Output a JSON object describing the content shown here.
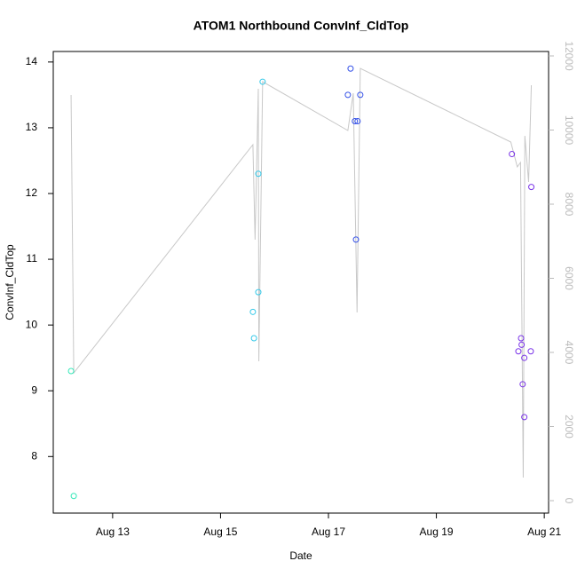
{
  "chart_data": {
    "type": "scatter",
    "title": "ATOM1 Northbound ConvInf_CldTop",
    "x_label": "Date",
    "y_label": "ConvInf_CldTop",
    "xlim": [
      11.9,
      21.08
    ],
    "xticks": [
      {
        "value": 13,
        "label": "Aug 13"
      },
      {
        "value": 15,
        "label": "Aug 15"
      },
      {
        "value": 17,
        "label": "Aug 17"
      },
      {
        "value": 19,
        "label": "Aug 19"
      },
      {
        "value": 21,
        "label": "Aug 21"
      }
    ],
    "ylim": [
      7.14,
      14.16
    ],
    "yticks": [
      8,
      9,
      10,
      11,
      12,
      13,
      14
    ],
    "y2lim": [
      -335,
      12120
    ],
    "y2ticks": [
      0,
      2000,
      4000,
      6000,
      8000,
      10000,
      12000
    ],
    "y2_color": "#bbbbbb",
    "series": [
      {
        "type": "scatter",
        "x": [
          12.23,
          12.28,
          15.6,
          15.62,
          15.7,
          15.7,
          15.78,
          17.36,
          17.41,
          17.49,
          17.54,
          17.51,
          17.59,
          20.4,
          20.52,
          20.57,
          20.58,
          20.63,
          20.6,
          20.63,
          20.75,
          20.76
        ],
        "values": [
          9.3,
          7.4,
          10.2,
          9.8,
          12.3,
          10.5,
          13.7,
          13.5,
          13.9,
          13.1,
          13.1,
          11.3,
          13.5,
          12.6,
          9.6,
          9.8,
          9.7,
          9.5,
          9.1,
          8.6,
          9.6,
          12.1
        ],
        "colors": [
          "#33e8b8",
          "#33e8b8",
          "#33c8e8",
          "#33c8e8",
          "#33c8e8",
          "#33c8e8",
          "#33c8e8",
          "#3350e8",
          "#3350e8",
          "#3350e8",
          "#3350e8",
          "#3350e8",
          "#3350e8",
          "#7a33e8",
          "#7a33e8",
          "#7a33e8",
          "#7a33e8",
          "#7a33e8",
          "#7a33e8",
          "#7a33e8",
          "#7a33e8",
          "#7a33e8"
        ]
      },
      {
        "type": "line",
        "axis": "y2",
        "color": "#c8c8c8",
        "x": [
          12.23,
          12.28,
          15.6,
          15.64,
          15.7,
          15.71,
          15.78,
          17.36,
          17.46,
          17.53,
          17.59,
          20.38,
          20.5,
          20.56,
          20.61,
          20.64,
          20.71,
          20.76
        ],
        "values": [
          10946,
          3449,
          9605,
          7042,
          11114,
          3760,
          11305,
          9988,
          10994,
          5078,
          11665,
          9677,
          9006,
          9126,
          623,
          9844,
          8599,
          11210
        ]
      }
    ]
  }
}
